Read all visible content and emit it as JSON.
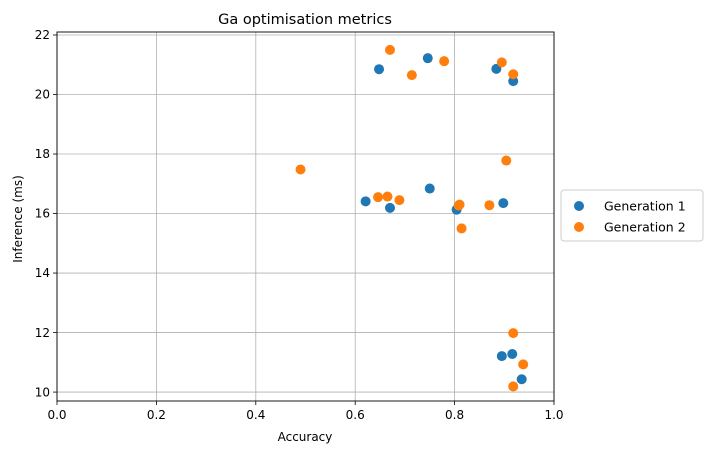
{
  "chart_data": {
    "type": "scatter",
    "title": "Ga optimisation metrics",
    "xlabel": "Accuracy",
    "ylabel": "Inference (ms)",
    "xlim": [
      0.0,
      1.0
    ],
    "ylim": [
      9.7,
      22.1
    ],
    "xticks": [
      "0.0",
      "0.2",
      "0.4",
      "0.6",
      "0.8",
      "1.0"
    ],
    "xtick_values": [
      0.0,
      0.2,
      0.4,
      0.6,
      0.8,
      1.0
    ],
    "yticks": [
      "10",
      "12",
      "14",
      "16",
      "18",
      "20",
      "22"
    ],
    "ytick_values": [
      10,
      12,
      14,
      16,
      18,
      20,
      22
    ],
    "grid": true,
    "legend_position": "outside-right",
    "series": [
      {
        "name": "Generation 1",
        "color": "#1f77b4",
        "points": [
          {
            "x": 0.648,
            "y": 20.85
          },
          {
            "x": 0.746,
            "y": 21.22
          },
          {
            "x": 0.884,
            "y": 20.86
          },
          {
            "x": 0.918,
            "y": 20.45
          },
          {
            "x": 0.621,
            "y": 16.41
          },
          {
            "x": 0.67,
            "y": 16.19
          },
          {
            "x": 0.75,
            "y": 16.84
          },
          {
            "x": 0.804,
            "y": 16.13
          },
          {
            "x": 0.898,
            "y": 16.35
          },
          {
            "x": 0.895,
            "y": 11.21
          },
          {
            "x": 0.916,
            "y": 11.28
          },
          {
            "x": 0.935,
            "y": 10.43
          }
        ]
      },
      {
        "name": "Generation 2",
        "color": "#ff7f0e",
        "points": [
          {
            "x": 0.67,
            "y": 21.5
          },
          {
            "x": 0.714,
            "y": 20.65
          },
          {
            "x": 0.779,
            "y": 21.12
          },
          {
            "x": 0.895,
            "y": 21.08
          },
          {
            "x": 0.918,
            "y": 20.68
          },
          {
            "x": 0.49,
            "y": 17.48
          },
          {
            "x": 0.904,
            "y": 17.78
          },
          {
            "x": 0.646,
            "y": 16.55
          },
          {
            "x": 0.665,
            "y": 16.57
          },
          {
            "x": 0.689,
            "y": 16.45
          },
          {
            "x": 0.808,
            "y": 16.27
          },
          {
            "x": 0.81,
            "y": 16.3
          },
          {
            "x": 0.814,
            "y": 15.5
          },
          {
            "x": 0.87,
            "y": 16.28
          },
          {
            "x": 0.918,
            "y": 11.98
          },
          {
            "x": 0.938,
            "y": 10.93
          },
          {
            "x": 0.918,
            "y": 10.19
          }
        ]
      }
    ]
  }
}
